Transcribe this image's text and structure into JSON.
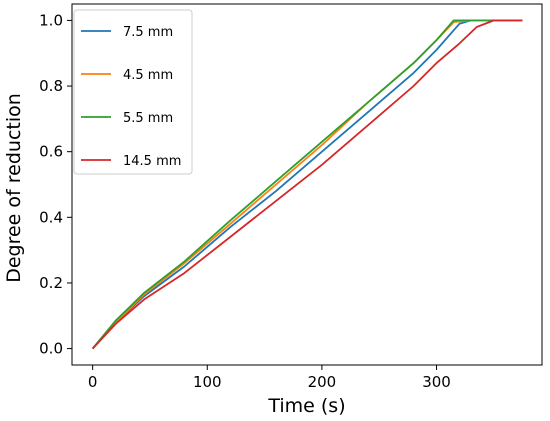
{
  "chart_data": {
    "type": "line",
    "title": "",
    "xlabel": "Time (s)",
    "ylabel": "Degree of reduction",
    "xlim": [
      -18,
      392
    ],
    "ylim": [
      -0.05,
      1.05
    ],
    "xticks": [
      "0",
      "100",
      "200",
      "300"
    ],
    "yticks": [
      "0.0",
      "0.2",
      "0.4",
      "0.6",
      "0.8",
      "1.0"
    ],
    "grid": false,
    "legend": "upper-left",
    "series": [
      {
        "name": "7.5 mm",
        "color": "#1f77b4",
        "x": [
          0,
          20,
          45,
          80,
          120,
          160,
          200,
          240,
          280,
          300,
          320,
          330,
          375
        ],
        "y": [
          0,
          0.08,
          0.16,
          0.25,
          0.37,
          0.48,
          0.6,
          0.72,
          0.84,
          0.91,
          0.99,
          1.0,
          1.0
        ]
      },
      {
        "name": "4.5 mm",
        "color": "#ff7f0e",
        "x": [
          0,
          20,
          45,
          80,
          120,
          160,
          200,
          240,
          280,
          300,
          315,
          330,
          375
        ],
        "y": [
          0,
          0.08,
          0.165,
          0.26,
          0.38,
          0.5,
          0.62,
          0.75,
          0.87,
          0.94,
          0.995,
          1.0,
          1.0
        ]
      },
      {
        "name": "5.5 mm",
        "color": "#2ca02c",
        "x": [
          0,
          20,
          45,
          80,
          120,
          160,
          200,
          240,
          280,
          300,
          315,
          330,
          375
        ],
        "y": [
          0,
          0.085,
          0.17,
          0.265,
          0.39,
          0.51,
          0.63,
          0.75,
          0.87,
          0.94,
          1.0,
          1.0,
          1.0
        ]
      },
      {
        "name": "14.5 mm",
        "color": "#d62728",
        "x": [
          0,
          20,
          45,
          80,
          120,
          160,
          200,
          240,
          280,
          300,
          320,
          335,
          350,
          375
        ],
        "y": [
          0,
          0.075,
          0.15,
          0.23,
          0.34,
          0.45,
          0.56,
          0.68,
          0.8,
          0.87,
          0.93,
          0.98,
          1.0,
          1.0
        ]
      }
    ]
  }
}
